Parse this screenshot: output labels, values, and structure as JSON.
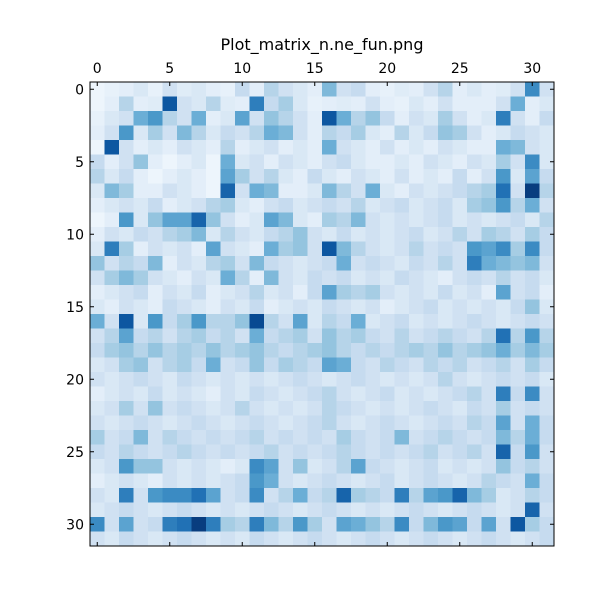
{
  "chart_data": {
    "type": "heatmap",
    "title": "Plot_matrix_n.ne_fun.png",
    "xlabel": "",
    "ylabel": "",
    "rows": 32,
    "cols": 32,
    "x_ticks": [
      "0",
      "5",
      "10",
      "15",
      "20",
      "25",
      "30"
    ],
    "y_ticks": [
      "0",
      "5",
      "10",
      "15",
      "20",
      "25",
      "30"
    ],
    "x_tick_values": [
      0,
      5,
      10,
      15,
      20,
      25,
      30
    ],
    "y_tick_values": [
      0,
      5,
      10,
      15,
      20,
      25,
      30
    ],
    "x_ticks_position": "top",
    "colormap": [
      "#f7fbff",
      "#deebf7",
      "#c6dbef",
      "#9ecae1",
      "#6baed6",
      "#4292c6",
      "#2171b5",
      "#08519c",
      "#08306b"
    ],
    "value_range": [
      0,
      1
    ],
    "grid": false,
    "values": [
      [
        0.05,
        0.08,
        0.1,
        0.15,
        0.08,
        0.2,
        0.12,
        0.15,
        0.1,
        0.08,
        0.25,
        0.1,
        0.3,
        0.2,
        0.15,
        0.1,
        0.45,
        0.2,
        0.25,
        0.1,
        0.08,
        0.12,
        0.1,
        0.2,
        0.3,
        0.1,
        0.15,
        0.1,
        0.12,
        0.2,
        0.65,
        0.2
      ],
      [
        0.05,
        0.1,
        0.3,
        0.1,
        0.12,
        0.85,
        0.2,
        0.15,
        0.3,
        0.12,
        0.1,
        0.7,
        0.25,
        0.35,
        0.15,
        0.08,
        0.1,
        0.12,
        0.1,
        0.2,
        0.1,
        0.08,
        0.15,
        0.1,
        0.2,
        0.1,
        0.1,
        0.1,
        0.2,
        0.5,
        0.1,
        0.15
      ],
      [
        0.08,
        0.15,
        0.2,
        0.5,
        0.6,
        0.3,
        0.2,
        0.5,
        0.1,
        0.15,
        0.55,
        0.2,
        0.4,
        0.3,
        0.2,
        0.1,
        0.85,
        0.5,
        0.3,
        0.4,
        0.25,
        0.1,
        0.2,
        0.15,
        0.35,
        0.2,
        0.1,
        0.15,
        0.7,
        0.2,
        0.1,
        0.25
      ],
      [
        0.1,
        0.2,
        0.6,
        0.15,
        0.35,
        0.2,
        0.45,
        0.3,
        0.15,
        0.25,
        0.2,
        0.3,
        0.5,
        0.45,
        0.2,
        0.1,
        0.3,
        0.25,
        0.35,
        0.15,
        0.1,
        0.3,
        0.15,
        0.25,
        0.4,
        0.35,
        0.2,
        0.1,
        0.15,
        0.25,
        0.2,
        0.15
      ],
      [
        0.05,
        0.85,
        0.2,
        0.1,
        0.15,
        0.1,
        0.2,
        0.15,
        0.1,
        0.3,
        0.1,
        0.15,
        0.2,
        0.1,
        0.15,
        0.1,
        0.5,
        0.2,
        0.15,
        0.1,
        0.2,
        0.1,
        0.15,
        0.1,
        0.2,
        0.15,
        0.1,
        0.1,
        0.5,
        0.45,
        0.2,
        0.15
      ],
      [
        0.25,
        0.1,
        0.2,
        0.4,
        0.1,
        0.05,
        0.1,
        0.15,
        0.05,
        0.5,
        0.15,
        0.2,
        0.1,
        0.2,
        0.15,
        0.1,
        0.2,
        0.25,
        0.15,
        0.1,
        0.1,
        0.15,
        0.1,
        0.2,
        0.15,
        0.1,
        0.2,
        0.15,
        0.35,
        0.2,
        0.65,
        0.15
      ],
      [
        0.3,
        0.15,
        0.25,
        0.1,
        0.05,
        0.1,
        0.15,
        0.1,
        0.05,
        0.55,
        0.35,
        0.2,
        0.3,
        0.15,
        0.1,
        0.25,
        0.15,
        0.1,
        0.2,
        0.15,
        0.1,
        0.2,
        0.1,
        0.15,
        0.1,
        0.25,
        0.1,
        0.2,
        0.6,
        0.15,
        0.55,
        0.25
      ],
      [
        0.15,
        0.45,
        0.35,
        0.1,
        0.1,
        0.2,
        0.15,
        0.1,
        0.05,
        0.8,
        0.2,
        0.5,
        0.45,
        0.1,
        0.1,
        0.15,
        0.45,
        0.3,
        0.2,
        0.5,
        0.15,
        0.1,
        0.2,
        0.15,
        0.2,
        0.25,
        0.3,
        0.35,
        0.75,
        0.2,
        0.95,
        0.3
      ],
      [
        0.1,
        0.15,
        0.2,
        0.15,
        0.25,
        0.1,
        0.15,
        0.2,
        0.3,
        0.35,
        0.15,
        0.1,
        0.2,
        0.25,
        0.15,
        0.2,
        0.25,
        0.2,
        0.3,
        0.15,
        0.2,
        0.25,
        0.15,
        0.2,
        0.25,
        0.15,
        0.35,
        0.4,
        0.6,
        0.3,
        0.5,
        0.2
      ],
      [
        0.05,
        0.1,
        0.6,
        0.15,
        0.4,
        0.55,
        0.55,
        0.8,
        0.4,
        0.2,
        0.1,
        0.15,
        0.55,
        0.45,
        0.15,
        0.1,
        0.35,
        0.3,
        0.45,
        0.2,
        0.15,
        0.2,
        0.15,
        0.2,
        0.25,
        0.15,
        0.2,
        0.15,
        0.2,
        0.25,
        0.15,
        0.3
      ],
      [
        0.1,
        0.2,
        0.15,
        0.25,
        0.2,
        0.3,
        0.35,
        0.45,
        0.15,
        0.3,
        0.2,
        0.15,
        0.25,
        0.3,
        0.4,
        0.2,
        0.15,
        0.25,
        0.15,
        0.2,
        0.15,
        0.2,
        0.25,
        0.15,
        0.2,
        0.3,
        0.2,
        0.35,
        0.3,
        0.2,
        0.35,
        0.25
      ],
      [
        0.15,
        0.7,
        0.35,
        0.1,
        0.2,
        0.15,
        0.2,
        0.1,
        0.55,
        0.2,
        0.15,
        0.1,
        0.5,
        0.35,
        0.4,
        0.2,
        0.85,
        0.45,
        0.3,
        0.2,
        0.15,
        0.2,
        0.3,
        0.2,
        0.25,
        0.2,
        0.6,
        0.55,
        0.65,
        0.35,
        0.65,
        0.25
      ],
      [
        0.4,
        0.2,
        0.3,
        0.25,
        0.45,
        0.1,
        0.2,
        0.15,
        0.3,
        0.35,
        0.2,
        0.45,
        0.25,
        0.2,
        0.15,
        0.2,
        0.25,
        0.5,
        0.2,
        0.25,
        0.2,
        0.15,
        0.25,
        0.2,
        0.3,
        0.2,
        0.7,
        0.5,
        0.45,
        0.4,
        0.45,
        0.2
      ],
      [
        0.2,
        0.35,
        0.45,
        0.35,
        0.2,
        0.15,
        0.1,
        0.2,
        0.15,
        0.5,
        0.3,
        0.1,
        0.45,
        0.2,
        0.15,
        0.25,
        0.2,
        0.25,
        0.15,
        0.2,
        0.15,
        0.25,
        0.2,
        0.15,
        0.1,
        0.2,
        0.25,
        0.2,
        0.3,
        0.2,
        0.25,
        0.15
      ],
      [
        0.1,
        0.15,
        0.2,
        0.25,
        0.1,
        0.2,
        0.15,
        0.25,
        0.1,
        0.15,
        0.2,
        0.3,
        0.15,
        0.2,
        0.1,
        0.25,
        0.55,
        0.35,
        0.3,
        0.35,
        0.2,
        0.15,
        0.2,
        0.15,
        0.25,
        0.15,
        0.2,
        0.1,
        0.55,
        0.2,
        0.25,
        0.1
      ],
      [
        0.15,
        0.1,
        0.2,
        0.15,
        0.1,
        0.25,
        0.2,
        0.15,
        0.1,
        0.2,
        0.15,
        0.25,
        0.1,
        0.15,
        0.2,
        0.15,
        0.25,
        0.2,
        0.15,
        0.2,
        0.1,
        0.15,
        0.2,
        0.25,
        0.15,
        0.2,
        0.15,
        0.2,
        0.15,
        0.25,
        0.4,
        0.15
      ],
      [
        0.5,
        0.2,
        0.85,
        0.15,
        0.6,
        0.25,
        0.35,
        0.6,
        0.3,
        0.3,
        0.4,
        0.9,
        0.3,
        0.2,
        0.55,
        0.15,
        0.3,
        0.25,
        0.5,
        0.15,
        0.2,
        0.25,
        0.15,
        0.2,
        0.15,
        0.2,
        0.25,
        0.2,
        0.15,
        0.2,
        0.25,
        0.2
      ],
      [
        0.2,
        0.3,
        0.55,
        0.25,
        0.3,
        0.2,
        0.3,
        0.35,
        0.25,
        0.3,
        0.2,
        0.5,
        0.25,
        0.3,
        0.35,
        0.2,
        0.4,
        0.3,
        0.35,
        0.25,
        0.2,
        0.3,
        0.2,
        0.25,
        0.3,
        0.25,
        0.2,
        0.3,
        0.75,
        0.3,
        0.6,
        0.3
      ],
      [
        0.25,
        0.35,
        0.4,
        0.3,
        0.4,
        0.3,
        0.35,
        0.3,
        0.4,
        0.3,
        0.35,
        0.4,
        0.3,
        0.25,
        0.3,
        0.35,
        0.4,
        0.3,
        0.25,
        0.3,
        0.25,
        0.3,
        0.35,
        0.3,
        0.4,
        0.3,
        0.35,
        0.4,
        0.5,
        0.35,
        0.45,
        0.35
      ],
      [
        0.15,
        0.2,
        0.35,
        0.4,
        0.2,
        0.3,
        0.35,
        0.25,
        0.5,
        0.2,
        0.25,
        0.4,
        0.25,
        0.35,
        0.3,
        0.25,
        0.55,
        0.5,
        0.25,
        0.2,
        0.3,
        0.25,
        0.2,
        0.3,
        0.25,
        0.3,
        0.2,
        0.25,
        0.3,
        0.2,
        0.35,
        0.25
      ],
      [
        0.2,
        0.15,
        0.2,
        0.25,
        0.2,
        0.15,
        0.25,
        0.2,
        0.15,
        0.2,
        0.15,
        0.2,
        0.15,
        0.2,
        0.25,
        0.2,
        0.15,
        0.2,
        0.25,
        0.2,
        0.15,
        0.2,
        0.15,
        0.2,
        0.3,
        0.2,
        0.15,
        0.2,
        0.25,
        0.2,
        0.25,
        0.15
      ],
      [
        0.1,
        0.15,
        0.2,
        0.15,
        0.25,
        0.15,
        0.2,
        0.15,
        0.1,
        0.2,
        0.15,
        0.25,
        0.2,
        0.15,
        0.2,
        0.25,
        0.3,
        0.2,
        0.15,
        0.2,
        0.25,
        0.15,
        0.2,
        0.15,
        0.2,
        0.25,
        0.3,
        0.2,
        0.7,
        0.25,
        0.65,
        0.2
      ],
      [
        0.15,
        0.2,
        0.35,
        0.2,
        0.4,
        0.2,
        0.25,
        0.2,
        0.15,
        0.2,
        0.3,
        0.2,
        0.15,
        0.2,
        0.15,
        0.2,
        0.3,
        0.25,
        0.2,
        0.15,
        0.2,
        0.15,
        0.2,
        0.25,
        0.2,
        0.15,
        0.25,
        0.2,
        0.35,
        0.2,
        0.25,
        0.2
      ],
      [
        0.2,
        0.15,
        0.2,
        0.25,
        0.2,
        0.15,
        0.2,
        0.25,
        0.2,
        0.15,
        0.2,
        0.25,
        0.2,
        0.15,
        0.2,
        0.25,
        0.3,
        0.2,
        0.15,
        0.2,
        0.25,
        0.2,
        0.15,
        0.2,
        0.25,
        0.2,
        0.3,
        0.25,
        0.55,
        0.2,
        0.5,
        0.25
      ],
      [
        0.35,
        0.2,
        0.25,
        0.45,
        0.2,
        0.3,
        0.25,
        0.2,
        0.25,
        0.2,
        0.25,
        0.3,
        0.2,
        0.25,
        0.2,
        0.25,
        0.2,
        0.35,
        0.25,
        0.2,
        0.25,
        0.45,
        0.2,
        0.25,
        0.3,
        0.25,
        0.2,
        0.25,
        0.45,
        0.3,
        0.5,
        0.25
      ],
      [
        0.25,
        0.2,
        0.3,
        0.25,
        0.2,
        0.25,
        0.3,
        0.25,
        0.2,
        0.25,
        0.2,
        0.25,
        0.3,
        0.2,
        0.25,
        0.2,
        0.25,
        0.3,
        0.25,
        0.2,
        0.25,
        0.2,
        0.25,
        0.3,
        0.2,
        0.25,
        0.3,
        0.2,
        0.8,
        0.25,
        0.6,
        0.2
      ],
      [
        0.15,
        0.2,
        0.6,
        0.4,
        0.4,
        0.2,
        0.15,
        0.2,
        0.15,
        0.1,
        0.15,
        0.65,
        0.55,
        0.2,
        0.4,
        0.15,
        0.2,
        0.3,
        0.55,
        0.25,
        0.2,
        0.15,
        0.2,
        0.25,
        0.15,
        0.2,
        0.15,
        0.2,
        0.4,
        0.25,
        0.3,
        0.2
      ],
      [
        0.1,
        0.15,
        0.2,
        0.15,
        0.1,
        0.2,
        0.15,
        0.2,
        0.15,
        0.2,
        0.25,
        0.6,
        0.5,
        0.2,
        0.15,
        0.2,
        0.25,
        0.2,
        0.15,
        0.2,
        0.25,
        0.15,
        0.2,
        0.25,
        0.2,
        0.15,
        0.2,
        0.3,
        0.25,
        0.2,
        0.5,
        0.25
      ],
      [
        0.2,
        0.15,
        0.7,
        0.2,
        0.6,
        0.65,
        0.65,
        0.75,
        0.55,
        0.2,
        0.25,
        0.65,
        0.2,
        0.3,
        0.5,
        0.25,
        0.3,
        0.8,
        0.35,
        0.3,
        0.25,
        0.7,
        0.3,
        0.55,
        0.6,
        0.8,
        0.45,
        0.35,
        0.15,
        0.2,
        0.3,
        0.25
      ],
      [
        0.15,
        0.2,
        0.25,
        0.2,
        0.15,
        0.2,
        0.25,
        0.2,
        0.15,
        0.2,
        0.15,
        0.2,
        0.25,
        0.2,
        0.15,
        0.2,
        0.25,
        0.2,
        0.15,
        0.2,
        0.15,
        0.2,
        0.25,
        0.2,
        0.15,
        0.2,
        0.25,
        0.2,
        0.15,
        0.2,
        0.8,
        0.2
      ],
      [
        0.65,
        0.2,
        0.55,
        0.2,
        0.25,
        0.7,
        0.75,
        0.95,
        0.7,
        0.35,
        0.3,
        0.7,
        0.45,
        0.3,
        0.6,
        0.35,
        0.2,
        0.55,
        0.5,
        0.4,
        0.3,
        0.65,
        0.25,
        0.45,
        0.6,
        0.55,
        0.25,
        0.55,
        0.2,
        0.85,
        0.35,
        0.25
      ],
      [
        0.2,
        0.15,
        0.25,
        0.2,
        0.15,
        0.2,
        0.25,
        0.2,
        0.15,
        0.2,
        0.15,
        0.25,
        0.2,
        0.15,
        0.2,
        0.25,
        0.2,
        0.15,
        0.2,
        0.25,
        0.2,
        0.15,
        0.2,
        0.25,
        0.2,
        0.15,
        0.2,
        0.25,
        0.2,
        0.15,
        0.2,
        0.25
      ]
    ]
  }
}
